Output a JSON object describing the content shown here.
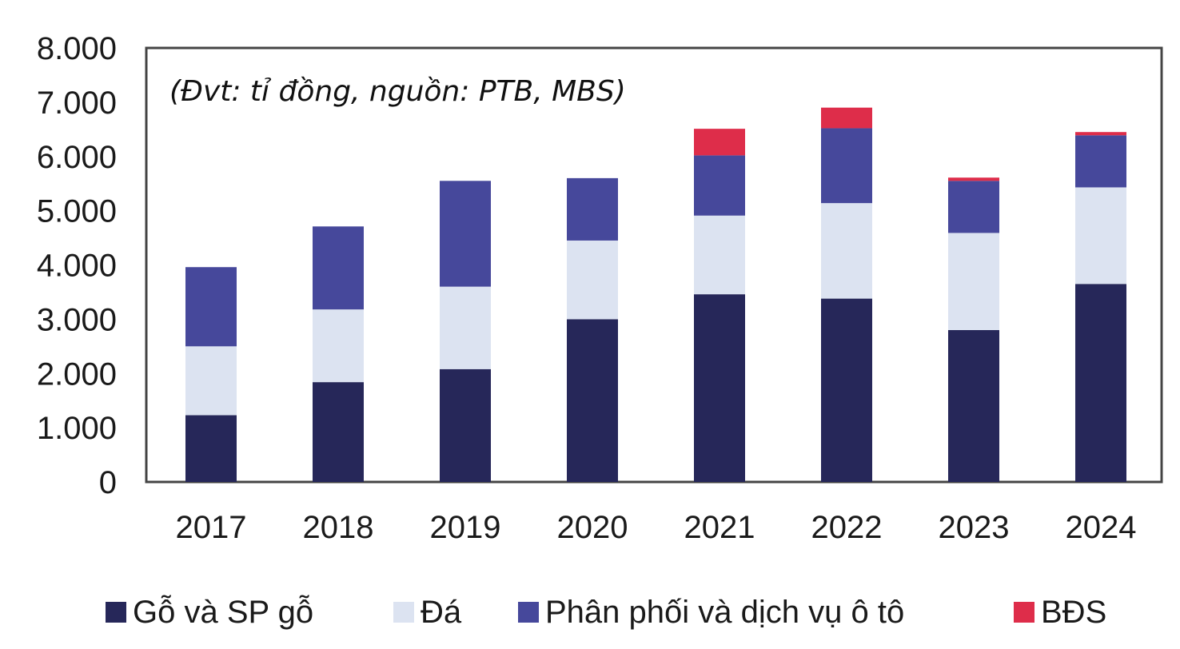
{
  "chart_data": {
    "type": "bar",
    "stacked": true,
    "annotation": "(Đvt: tỉ đồng, nguồn: PTB, MBS)",
    "categories": [
      "2017",
      "2018",
      "2019",
      "2020",
      "2021",
      "2022",
      "2023",
      "2024"
    ],
    "ylim": [
      0,
      8000
    ],
    "yticks": [
      "0",
      "1.000",
      "2.000",
      "3.000",
      "4.000",
      "5.000",
      "6.000",
      "7.000",
      "8.000"
    ],
    "legend_position": "bottom",
    "series": [
      {
        "name": "Gỗ và SP gỗ",
        "color": "#262759",
        "values": [
          1230,
          1840,
          2080,
          3000,
          3460,
          3380,
          2800,
          3650
        ]
      },
      {
        "name": "Đá",
        "color": "#dce3f1",
        "values": [
          1270,
          1340,
          1520,
          1450,
          1450,
          1760,
          1790,
          1780
        ]
      },
      {
        "name": "Phân phối và dịch vụ ô tô",
        "color": "#46489b",
        "values": [
          1460,
          1530,
          1950,
          1150,
          1110,
          1380,
          960,
          960
        ]
      },
      {
        "name": "BĐS",
        "color": "#de2d4a",
        "values": [
          0,
          0,
          0,
          0,
          490,
          380,
          60,
          60
        ]
      }
    ]
  }
}
